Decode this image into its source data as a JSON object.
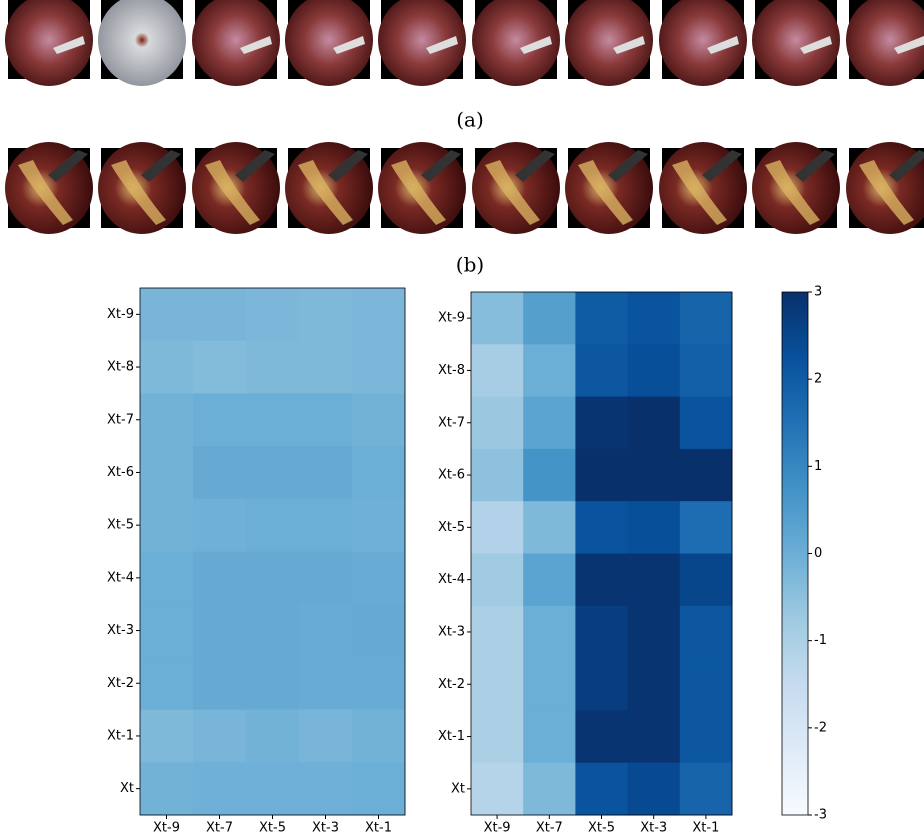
{
  "figure": {
    "captions": [
      "(a)",
      "(b)"
    ]
  },
  "chart_data": [
    {
      "type": "heatmap",
      "cmap": "Blues",
      "clim": [
        -3,
        3
      ],
      "x_categories": [
        "Xt-9",
        "Xt-7",
        "Xt-5",
        "Xt-3",
        "Xt-1"
      ],
      "y_categories": [
        "Xt-9",
        "Xt-8",
        "Xt-7",
        "Xt-6",
        "Xt-5",
        "Xt-4",
        "Xt-3",
        "Xt-2",
        "Xt-1",
        "Xt"
      ],
      "values": [
        [
          -0.2,
          -0.2,
          -0.25,
          -0.3,
          -0.25
        ],
        [
          -0.3,
          -0.35,
          -0.3,
          -0.3,
          -0.25
        ],
        [
          -0.1,
          0,
          0,
          0,
          -0.1
        ],
        [
          -0.1,
          0.1,
          0.1,
          0.1,
          0
        ],
        [
          -0.1,
          -0.05,
          0,
          0,
          -0.05
        ],
        [
          0,
          0.1,
          0.1,
          0.1,
          0.05
        ],
        [
          0,
          0.1,
          0.1,
          0.05,
          0.1
        ],
        [
          0,
          0.1,
          0.1,
          0.05,
          0.05
        ],
        [
          -0.3,
          -0.2,
          -0.1,
          -0.2,
          -0.1
        ],
        [
          -0.1,
          -0.05,
          -0.05,
          -0.05,
          0
        ]
      ]
    },
    {
      "type": "heatmap",
      "cmap": "Blues",
      "clim": [
        -3,
        3
      ],
      "x_categories": [
        "Xt-9",
        "Xt-7",
        "Xt-5",
        "Xt-3",
        "Xt-1"
      ],
      "y_categories": [
        "Xt-9",
        "Xt-8",
        "Xt-7",
        "Xt-6",
        "Xt-5",
        "Xt-4",
        "Xt-3",
        "Xt-2",
        "Xt-1",
        "Xt"
      ],
      "values": [
        [
          -0.4,
          0.4,
          2.0,
          2.2,
          1.8
        ],
        [
          -0.9,
          0,
          2.1,
          2.3,
          1.9
        ],
        [
          -0.7,
          0.3,
          2.9,
          3.0,
          2.2
        ],
        [
          -0.5,
          0.7,
          3.0,
          3.0,
          3.0
        ],
        [
          -1.1,
          -0.3,
          2.2,
          2.3,
          1.6
        ],
        [
          -0.8,
          0.3,
          2.9,
          2.9,
          2.5
        ],
        [
          -1.0,
          0,
          2.7,
          2.9,
          2.1
        ],
        [
          -1.0,
          0,
          2.7,
          2.9,
          2.1
        ],
        [
          -1.0,
          0,
          2.9,
          2.9,
          2.1
        ],
        [
          -1.2,
          -0.3,
          2.2,
          2.4,
          1.8
        ]
      ],
      "colorbar": {
        "lim": [
          -3,
          3
        ],
        "ticks": [
          -3,
          -2,
          -1,
          0,
          1,
          2,
          3
        ]
      }
    }
  ]
}
